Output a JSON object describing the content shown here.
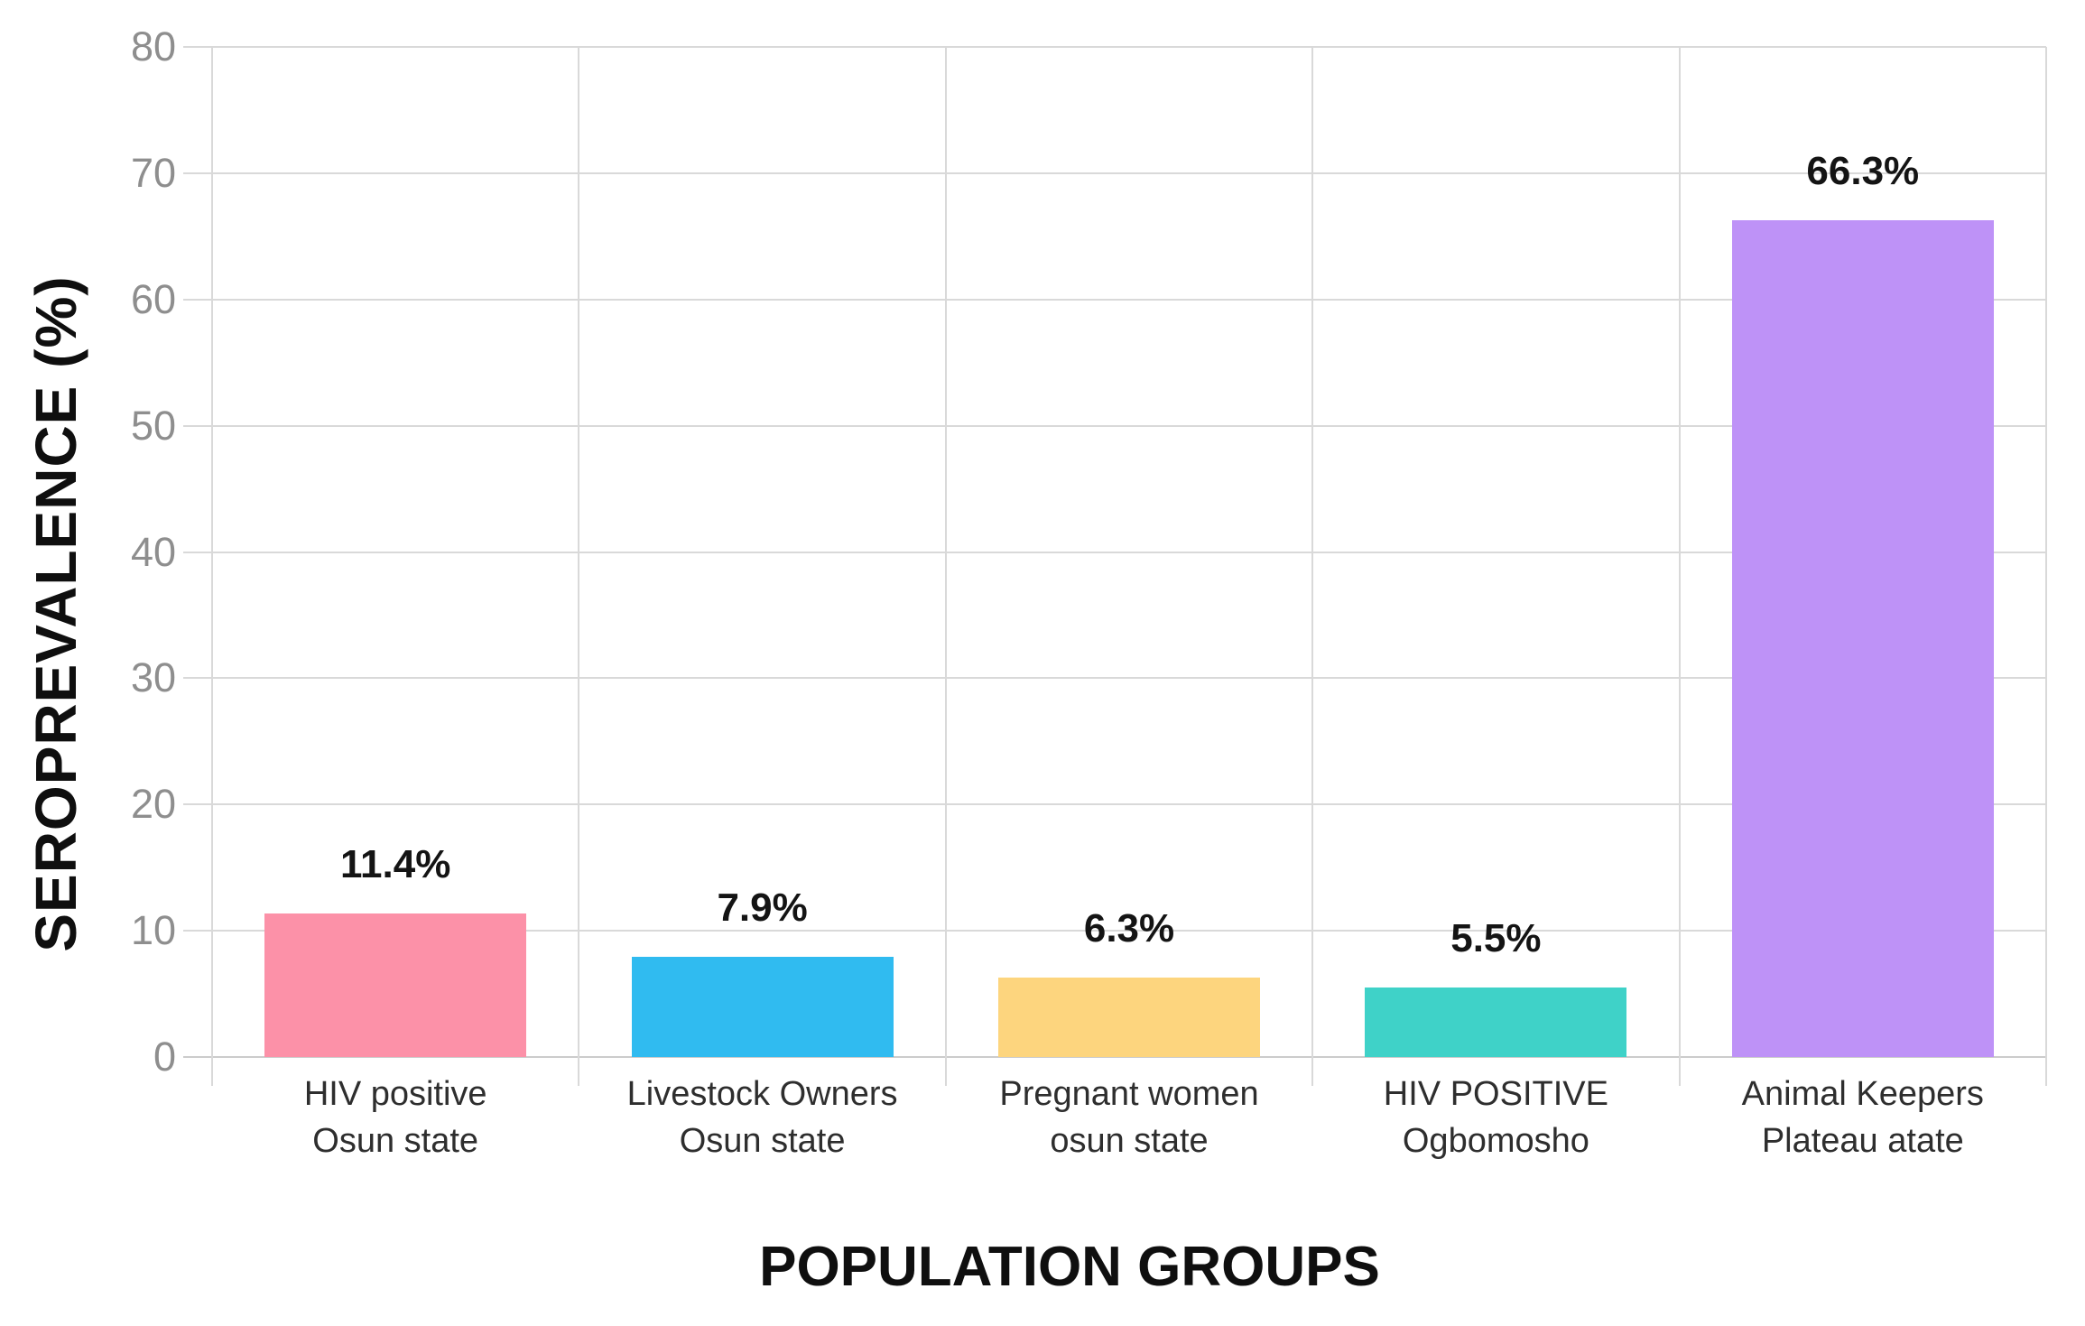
{
  "chart_data": {
    "type": "bar",
    "title": "",
    "xlabel": "POPULATION GROUPS",
    "ylabel": "SEROPREVALENCE (%)",
    "categories": [
      [
        "HIV positive",
        "Osun state"
      ],
      [
        "Livestock Owners",
        "Osun state"
      ],
      [
        "Pregnant women",
        "osun state"
      ],
      [
        "HIV POSITIVE",
        "Ogbomosho"
      ],
      [
        "Animal Keepers",
        "Plateau atate"
      ]
    ],
    "values": [
      11.4,
      7.9,
      6.3,
      5.5,
      66.3
    ],
    "value_labels": [
      "11.4%",
      "7.9%",
      "6.3%",
      "5.5%",
      "66.3%"
    ],
    "bar_colors": [
      "#FC91A8",
      "#30BBF0",
      "#FDD57E",
      "#3FD2C8",
      "#BE92F7"
    ],
    "ylim": [
      0,
      80
    ],
    "yticks": [
      0,
      10,
      20,
      30,
      40,
      50,
      60,
      70,
      80
    ],
    "grid": true,
    "legend": false,
    "colors": {
      "background": "#ffffff",
      "gridline": "#d9d9d9",
      "axis_line": "#cccccc",
      "tick_label": "#8e8e8e",
      "value_label": "#141414",
      "category_label": "#2e2e2e",
      "axis_title": "#0f0f0f"
    }
  }
}
